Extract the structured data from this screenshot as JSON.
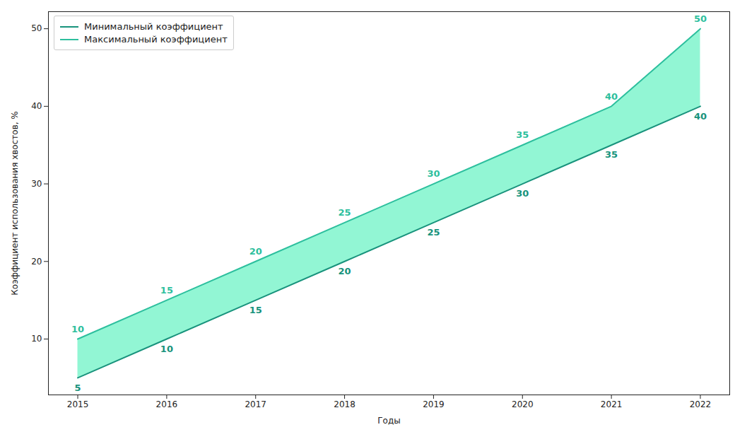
{
  "chart_data": {
    "type": "line",
    "x_label": "Годы",
    "y_label": "Коэффициент использования хвостов, %",
    "x": [
      2015,
      2016,
      2017,
      2018,
      2019,
      2020,
      2021,
      2022
    ],
    "series": [
      {
        "name": "Минимальный коэффициент",
        "color": "#17937c",
        "values": [
          5,
          10,
          15,
          20,
          25,
          30,
          35,
          40
        ]
      },
      {
        "name": "Максимальный коэффициент",
        "color": "#2ebf9e",
        "values": [
          10,
          15,
          20,
          25,
          30,
          35,
          40,
          50
        ]
      }
    ],
    "xlim": [
      2014.67,
      2022.33
    ],
    "xticks": [
      2015,
      2016,
      2017,
      2018,
      2019,
      2020,
      2021,
      2022
    ],
    "ylim": [
      2.8,
      52.2
    ],
    "yticks": [
      10,
      20,
      30,
      40,
      50
    ],
    "grid": false,
    "legend": "upper left",
    "data_labels": true
  }
}
